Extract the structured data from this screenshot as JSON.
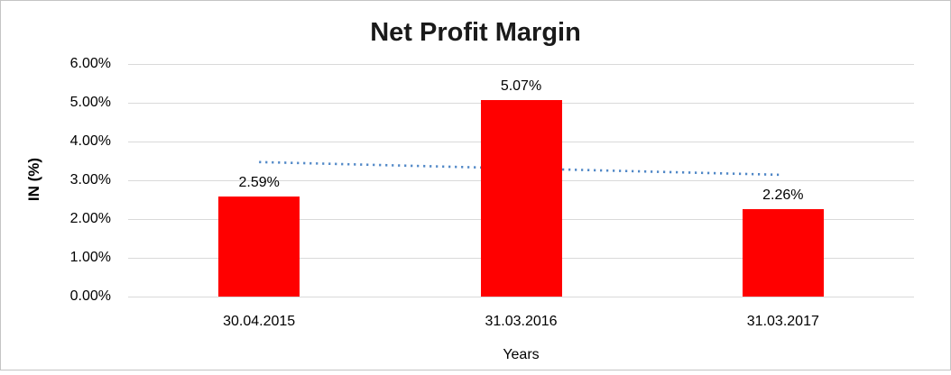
{
  "chart_data": {
    "type": "bar",
    "title": "Net Profit Margin",
    "xlabel": "Years",
    "ylabel": "IN (%)",
    "categories": [
      "30.04.2015",
      "31.03.2016",
      "31.03.2017"
    ],
    "values": [
      2.59,
      5.07,
      2.26
    ],
    "value_labels": [
      "2.59%",
      "5.07%",
      "2.26%"
    ],
    "yticks": [
      0,
      1,
      2,
      3,
      4,
      5,
      6
    ],
    "ytick_labels": [
      "0.00%",
      "1.00%",
      "2.00%",
      "3.00%",
      "4.00%",
      "5.00%",
      "6.00%"
    ],
    "ylim": [
      0,
      6
    ],
    "grid": true,
    "legend": false,
    "bar_color": "#ff0000",
    "gridline_color": "#d9d9d9",
    "trendline": {
      "type": "linear",
      "style": "dotted",
      "color": "#4e86c6",
      "start_value": 3.47,
      "end_value": 3.14
    }
  }
}
